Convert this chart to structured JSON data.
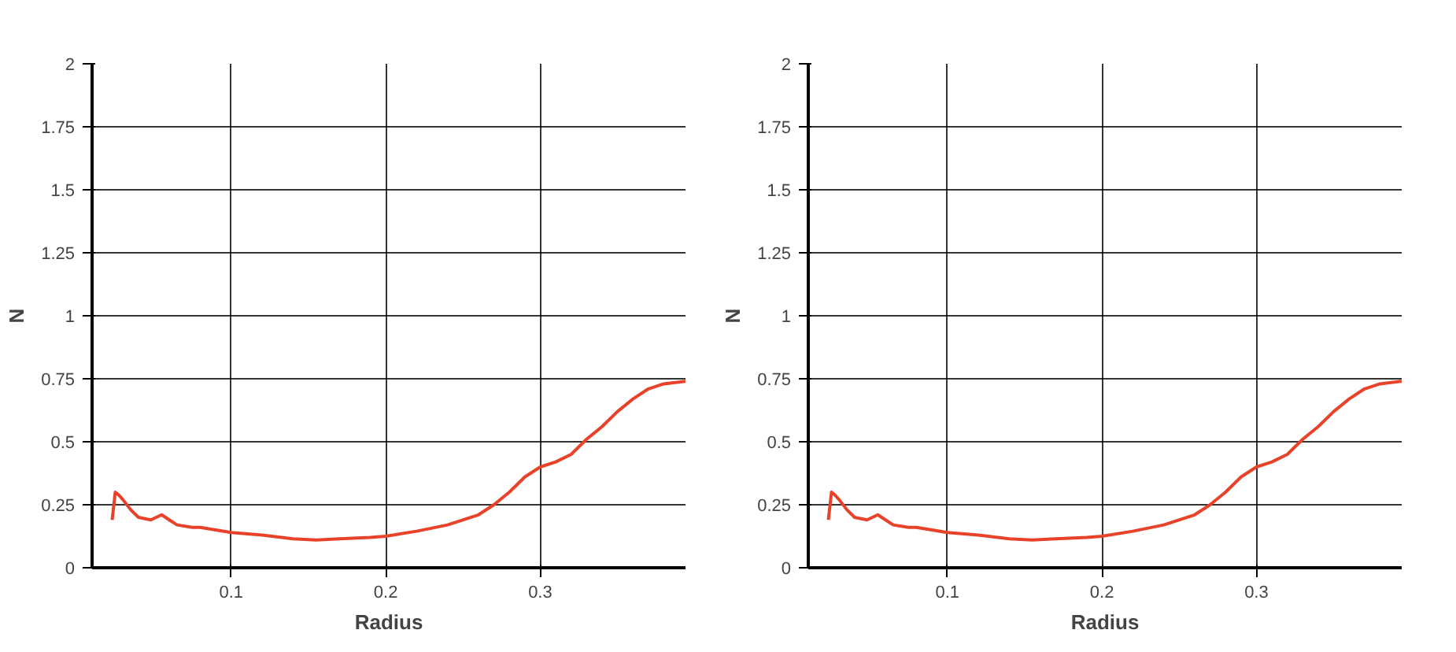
{
  "chart_data": [
    {
      "type": "line",
      "xlabel": "Radius",
      "ylabel": "N",
      "xlim": [
        0.01,
        0.394
      ],
      "ylim": [
        0,
        2
      ],
      "xticks": [
        0.1,
        0.2,
        0.3
      ],
      "yticks": [
        0,
        0.25,
        0.5,
        0.75,
        1,
        1.25,
        1.5,
        1.75,
        2
      ],
      "grid": true,
      "line_style": "solid",
      "series": [
        {
          "color": "#e8432a",
          "x": [
            0.023,
            0.025,
            0.027,
            0.03,
            0.035,
            0.04,
            0.048,
            0.055,
            0.06,
            0.065,
            0.075,
            0.08,
            0.09,
            0.1,
            0.12,
            0.14,
            0.155,
            0.17,
            0.19,
            0.2,
            0.22,
            0.24,
            0.26,
            0.27,
            0.28,
            0.29,
            0.3,
            0.31,
            0.32,
            0.33,
            0.34,
            0.35,
            0.36,
            0.37,
            0.38,
            0.394
          ],
          "values": [
            0.19,
            0.3,
            0.29,
            0.27,
            0.23,
            0.2,
            0.19,
            0.21,
            0.19,
            0.17,
            0.16,
            0.16,
            0.15,
            0.14,
            0.13,
            0.115,
            0.11,
            0.115,
            0.12,
            0.125,
            0.145,
            0.17,
            0.21,
            0.25,
            0.3,
            0.36,
            0.4,
            0.42,
            0.45,
            0.51,
            0.56,
            0.62,
            0.67,
            0.71,
            0.73,
            0.74
          ]
        }
      ]
    },
    {
      "type": "line",
      "xlabel": "Radius",
      "ylabel": "N",
      "xlim": [
        0.01,
        0.394
      ],
      "ylim": [
        0,
        2
      ],
      "xticks": [
        0.1,
        0.2,
        0.3
      ],
      "yticks": [
        0,
        0.25,
        0.5,
        0.75,
        1,
        1.25,
        1.5,
        1.75,
        2
      ],
      "grid": true,
      "line_style": "solid",
      "series": [
        {
          "color": "#e8432a",
          "x": [
            0.023,
            0.025,
            0.027,
            0.03,
            0.035,
            0.04,
            0.048,
            0.055,
            0.06,
            0.065,
            0.075,
            0.08,
            0.09,
            0.1,
            0.12,
            0.14,
            0.155,
            0.17,
            0.19,
            0.2,
            0.22,
            0.24,
            0.26,
            0.27,
            0.28,
            0.29,
            0.3,
            0.31,
            0.32,
            0.33,
            0.34,
            0.35,
            0.36,
            0.37,
            0.38,
            0.394
          ],
          "values": [
            0.19,
            0.3,
            0.29,
            0.27,
            0.23,
            0.2,
            0.19,
            0.21,
            0.19,
            0.17,
            0.16,
            0.16,
            0.15,
            0.14,
            0.13,
            0.115,
            0.11,
            0.115,
            0.12,
            0.125,
            0.145,
            0.17,
            0.21,
            0.25,
            0.3,
            0.36,
            0.4,
            0.42,
            0.45,
            0.51,
            0.56,
            0.62,
            0.67,
            0.71,
            0.73,
            0.74
          ]
        }
      ]
    }
  ]
}
